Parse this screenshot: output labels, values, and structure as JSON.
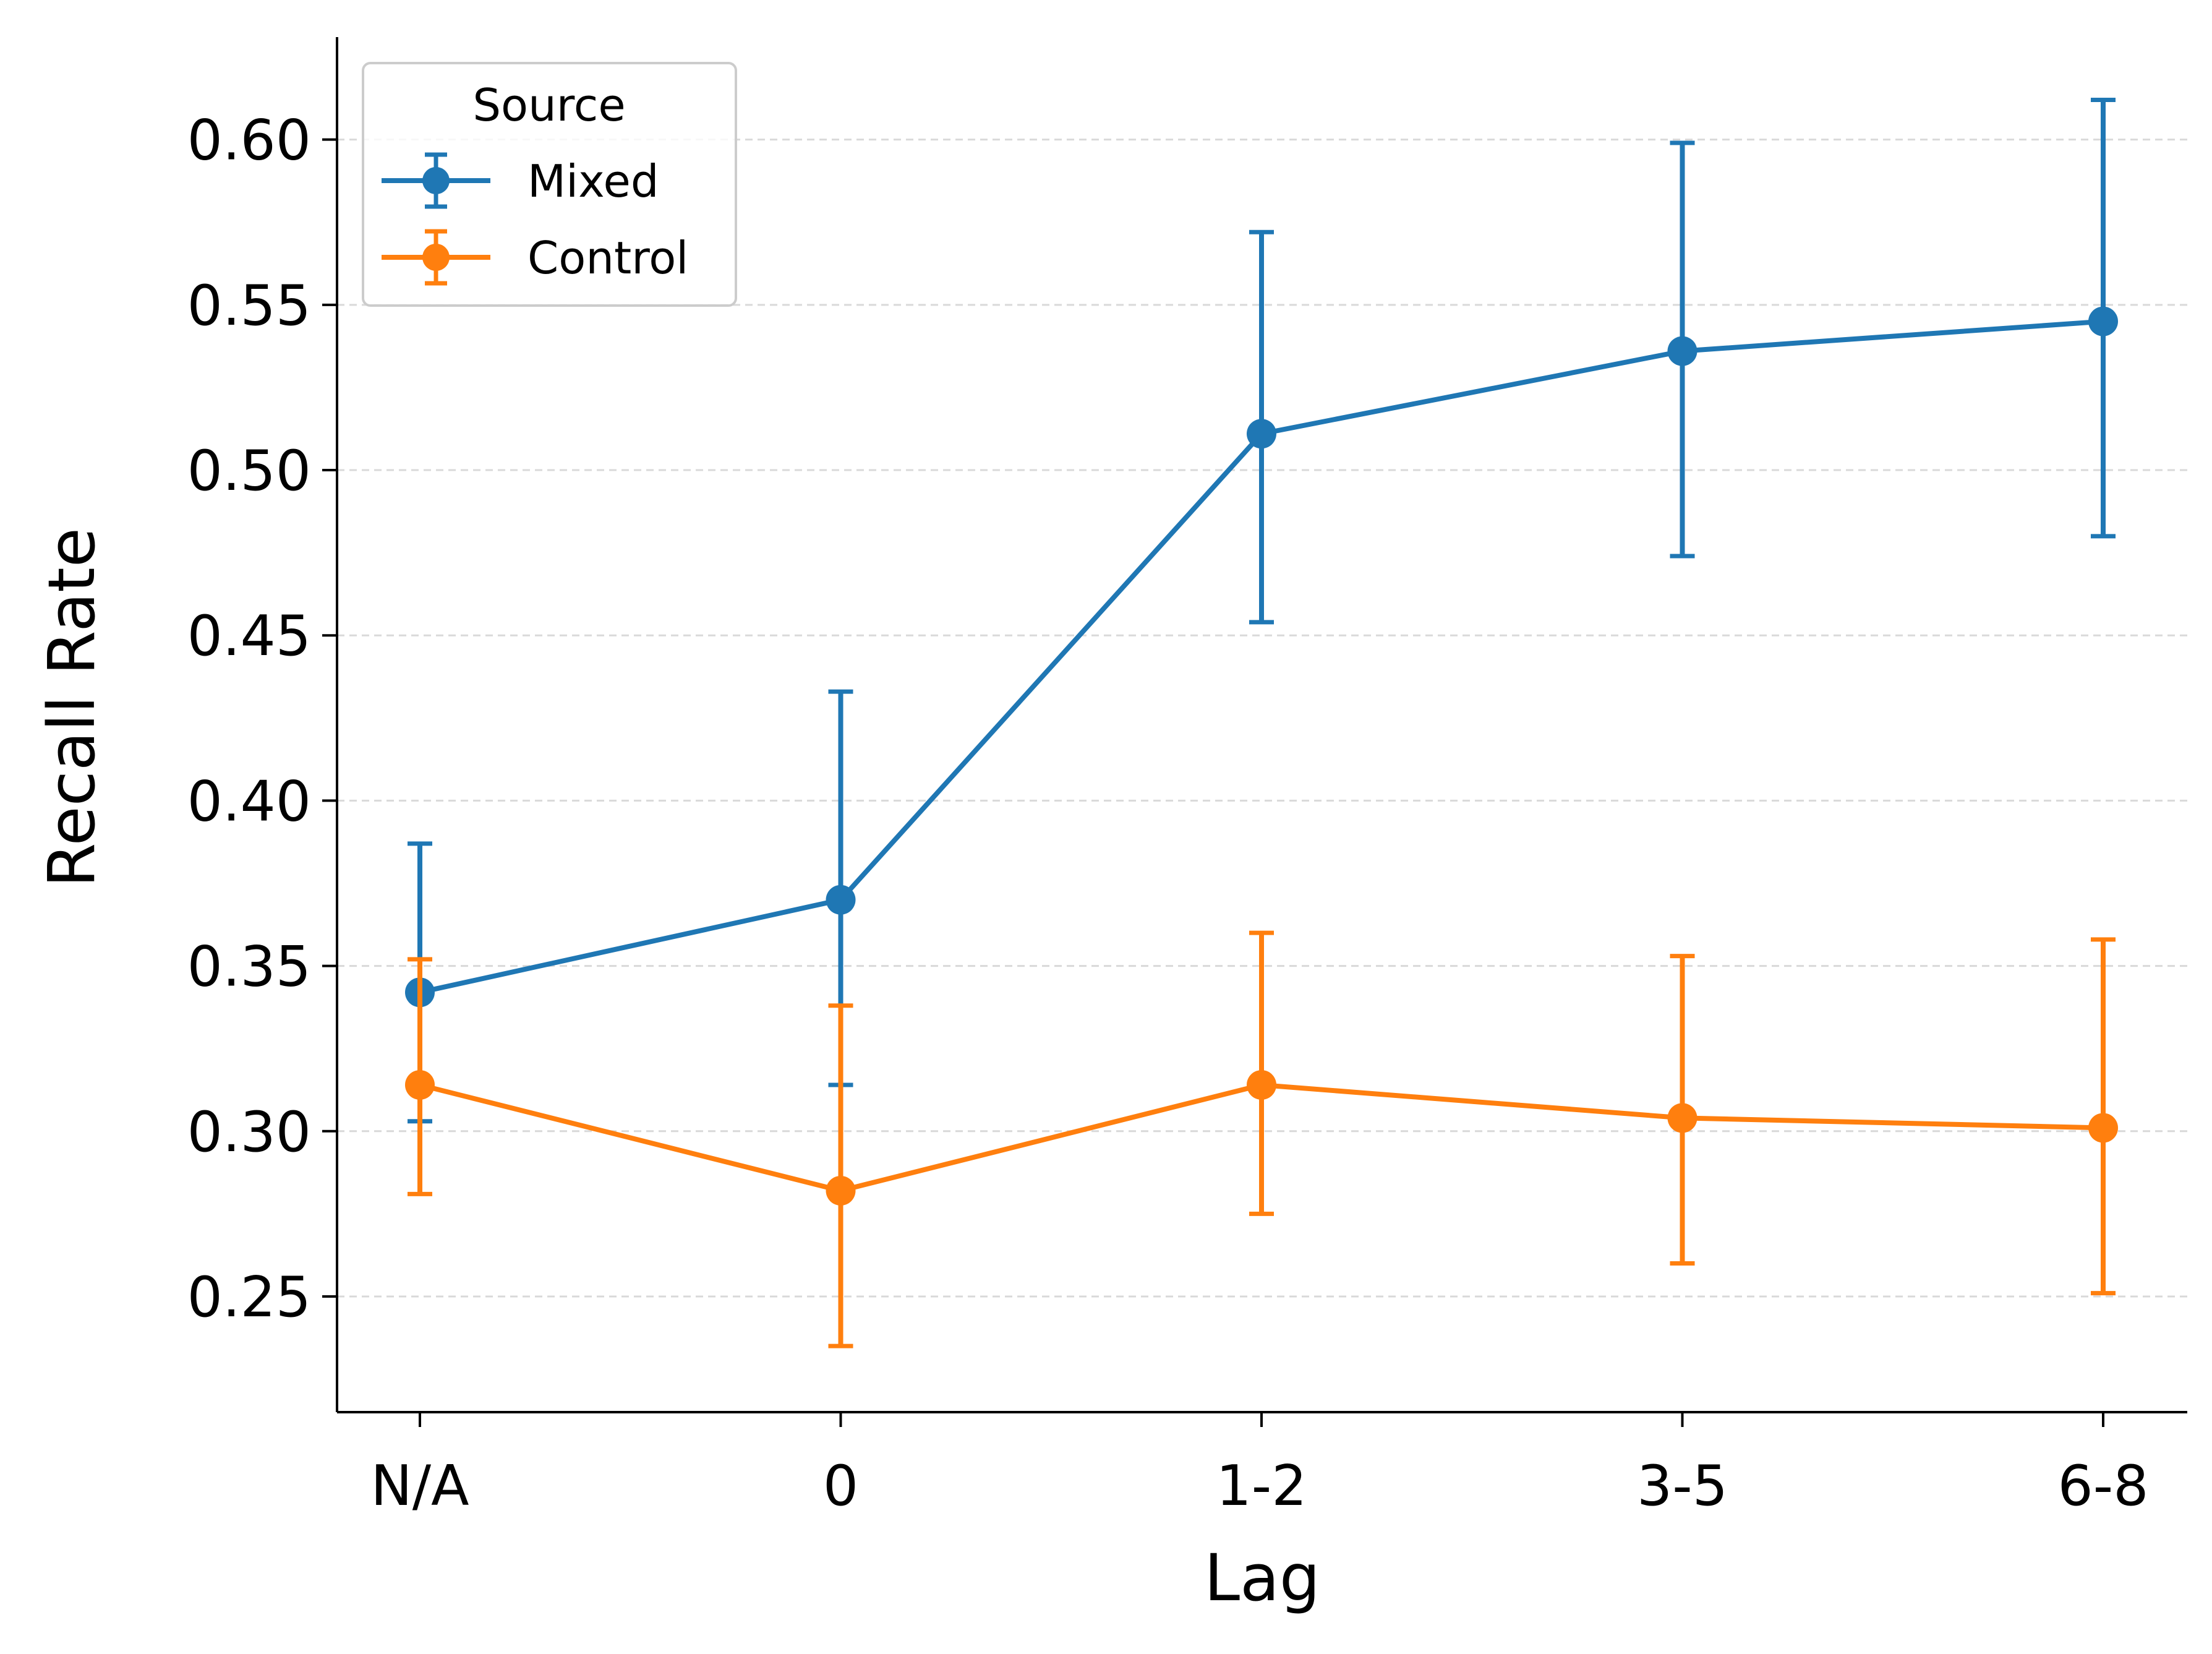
{
  "chart_data": {
    "type": "line",
    "categories": [
      "N/A",
      "0",
      "1-2",
      "3-5",
      "6-8"
    ],
    "xlabel": "Lag",
    "ylabel": "Recall Rate",
    "ylim": [
      0.215,
      0.631
    ],
    "yticks": [
      0.25,
      0.3,
      0.35,
      0.4,
      0.45,
      0.5,
      0.55,
      0.6
    ],
    "ytick_labels": [
      "0.25",
      "0.30",
      "0.35",
      "0.40",
      "0.45",
      "0.50",
      "0.55",
      "0.60"
    ],
    "grid": "y, dashed",
    "legend": {
      "title": "Source",
      "placement": "top-left"
    },
    "series": [
      {
        "name": "Mixed",
        "color": "#1f77b4",
        "values": [
          0.342,
          0.37,
          0.511,
          0.536,
          0.545
        ],
        "err_low": [
          0.303,
          0.314,
          0.454,
          0.474,
          0.48
        ],
        "err_high": [
          0.387,
          0.433,
          0.572,
          0.599,
          0.612
        ]
      },
      {
        "name": "Control",
        "color": "#ff7f0e",
        "values": [
          0.314,
          0.282,
          0.314,
          0.304,
          0.301
        ],
        "err_low": [
          0.281,
          0.235,
          0.275,
          0.26,
          0.251
        ],
        "err_high": [
          0.352,
          0.338,
          0.36,
          0.353,
          0.358
        ]
      }
    ]
  }
}
